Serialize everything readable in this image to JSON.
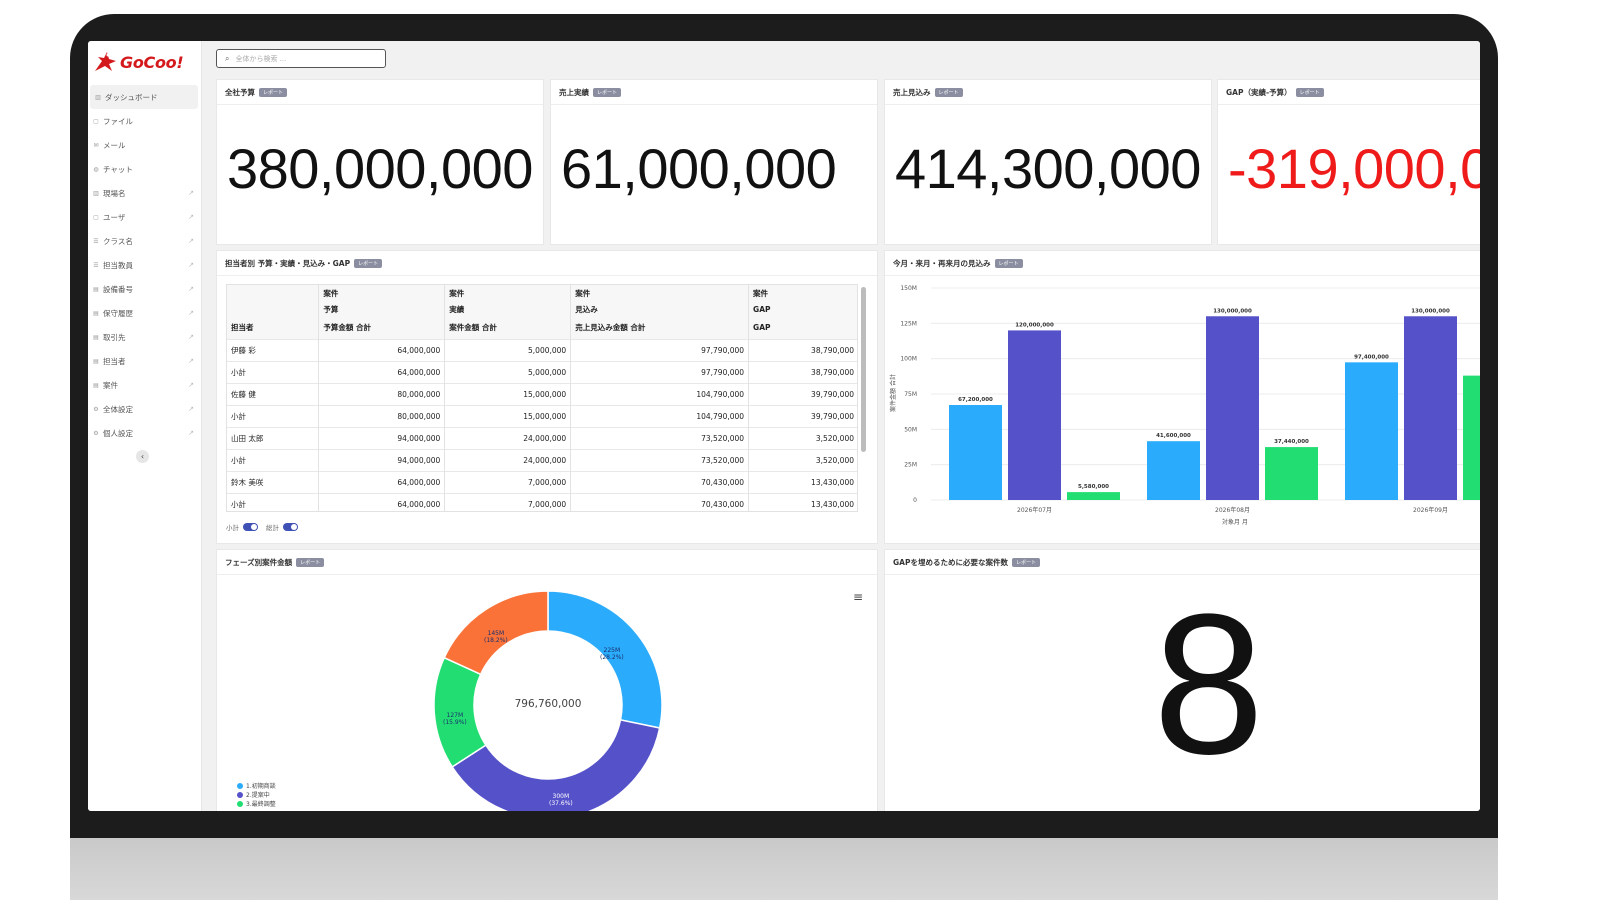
{
  "brand": {
    "name": "GoCoo!",
    "color": "#d4191c"
  },
  "search": {
    "placeholder": "全体から検索 ..."
  },
  "sidebar": {
    "items": [
      {
        "label": "ダッシュボード",
        "icon": "bar-icon",
        "active": true
      },
      {
        "label": "ファイル",
        "icon": "file-icon"
      },
      {
        "label": "メール",
        "icon": "mail-icon"
      },
      {
        "label": "チャット",
        "icon": "chat-icon"
      },
      {
        "label": "現場名",
        "icon": "bar-icon"
      },
      {
        "label": "ユーザ",
        "icon": "user-icon"
      },
      {
        "label": "クラス名",
        "icon": "list-icon"
      },
      {
        "label": "担当教員",
        "icon": "list-icon"
      },
      {
        "label": "設備番号",
        "icon": "doc-icon"
      },
      {
        "label": "保守履歴",
        "icon": "doc-icon"
      },
      {
        "label": "取引先",
        "icon": "doc-icon"
      },
      {
        "label": "担当者",
        "icon": "doc-icon"
      },
      {
        "label": "案件",
        "icon": "doc-icon"
      },
      {
        "label": "全体設定",
        "icon": "gear-icon"
      },
      {
        "label": "個人設定",
        "icon": "gear-icon"
      }
    ]
  },
  "badge_label": "レポート",
  "kpis": [
    {
      "title": "全社予算",
      "value": "380,000,000"
    },
    {
      "title": "売上実績",
      "value": "61,000,000"
    },
    {
      "title": "売上見込み",
      "value": "414,300,000"
    },
    {
      "title": "GAP（実績-予算）",
      "value": "-319,000,0"
    }
  ],
  "table_card": {
    "title": "担当者別 予算・実績・見込み・GAP",
    "group_headers": [
      "案件",
      "案件",
      "案件",
      "案件"
    ],
    "sub_headers": [
      "予算",
      "実績",
      "見込み",
      "GAP"
    ],
    "columns": [
      "担当者",
      "予算金額 合計",
      "案件金額 合計",
      "売上見込み金額 合計",
      "GAP"
    ],
    "rows": [
      [
        "伊藤 彩",
        "64,000,000",
        "5,000,000",
        "97,790,000",
        "38,790,000"
      ],
      [
        "小計",
        "64,000,000",
        "5,000,000",
        "97,790,000",
        "38,790,000"
      ],
      [
        "佐藤 健",
        "80,000,000",
        "15,000,000",
        "104,790,000",
        "39,790,000"
      ],
      [
        "小計",
        "80,000,000",
        "15,000,000",
        "104,790,000",
        "39,790,000"
      ],
      [
        "山田 太郎",
        "94,000,000",
        "24,000,000",
        "73,520,000",
        "3,520,000"
      ],
      [
        "小計",
        "94,000,000",
        "24,000,000",
        "73,520,000",
        "3,520,000"
      ],
      [
        "鈴木 美咲",
        "64,000,000",
        "7,000,000",
        "70,430,000",
        "13,430,000"
      ],
      [
        "小計",
        "64,000,000",
        "7,000,000",
        "70,430,000",
        "13,430,000"
      ]
    ],
    "toggle_subtotal": "小計",
    "toggle_total": "総計"
  },
  "bar_card": {
    "title": "今月・来月・再来月の見込み"
  },
  "donut_card": {
    "title": "フェーズ別案件金額",
    "total": "796,760,000",
    "slice_labels": [
      {
        "value": "225M",
        "pct": "(28.2%)"
      },
      {
        "value": "300M",
        "pct": "(37.6%)"
      },
      {
        "value": "127M",
        "pct": "(15.9%)"
      },
      {
        "value": "145M",
        "pct": "(18.2%)"
      }
    ],
    "legend": [
      {
        "label": "1.初期商談",
        "color": "#2aabfb"
      },
      {
        "label": "2.提案中",
        "color": "#5552c9"
      },
      {
        "label": "3.最終調整",
        "color": "#22de72"
      }
    ]
  },
  "gap_card": {
    "title": "GAPを埋めるために必要な案件数",
    "value": "8"
  },
  "chart_data": [
    {
      "type": "bar",
      "title": "今月・来月・再来月の見込み",
      "xlabel": "対象月 月",
      "ylabel": "案件金額 合計",
      "categories": [
        "2026年07月",
        "2026年08月",
        "2026年09月"
      ],
      "series": [
        {
          "values": [
            67200000,
            41600000,
            97400000
          ],
          "labels": [
            "67,200,000",
            "41,600,000",
            "97,400,000"
          ],
          "color": "#2aabfb"
        },
        {
          "values": [
            120000000,
            130000000,
            130000000
          ],
          "labels": [
            "120,000,000",
            "130,000,000",
            "130,000,000"
          ],
          "color": "#5552c9"
        },
        {
          "values": [
            5580000,
            37440000,
            88000000
          ],
          "labels": [
            "5,580,000",
            "37,440,000",
            ""
          ],
          "color": "#22de72"
        }
      ],
      "yticks": [
        "0",
        "25M",
        "50M",
        "75M",
        "100M",
        "125M",
        "150M"
      ],
      "ylim": [
        0,
        150000000
      ],
      "grid": true
    },
    {
      "type": "pie",
      "title": "フェーズ別案件金額",
      "categories": [
        "1.初期商談",
        "2.提案中",
        "3.最終調整",
        ""
      ],
      "values": [
        225,
        300,
        127,
        145
      ],
      "colors": [
        "#2aabfb",
        "#5552c9",
        "#22de72",
        "#fa7238"
      ],
      "total": "796,760,000"
    }
  ]
}
